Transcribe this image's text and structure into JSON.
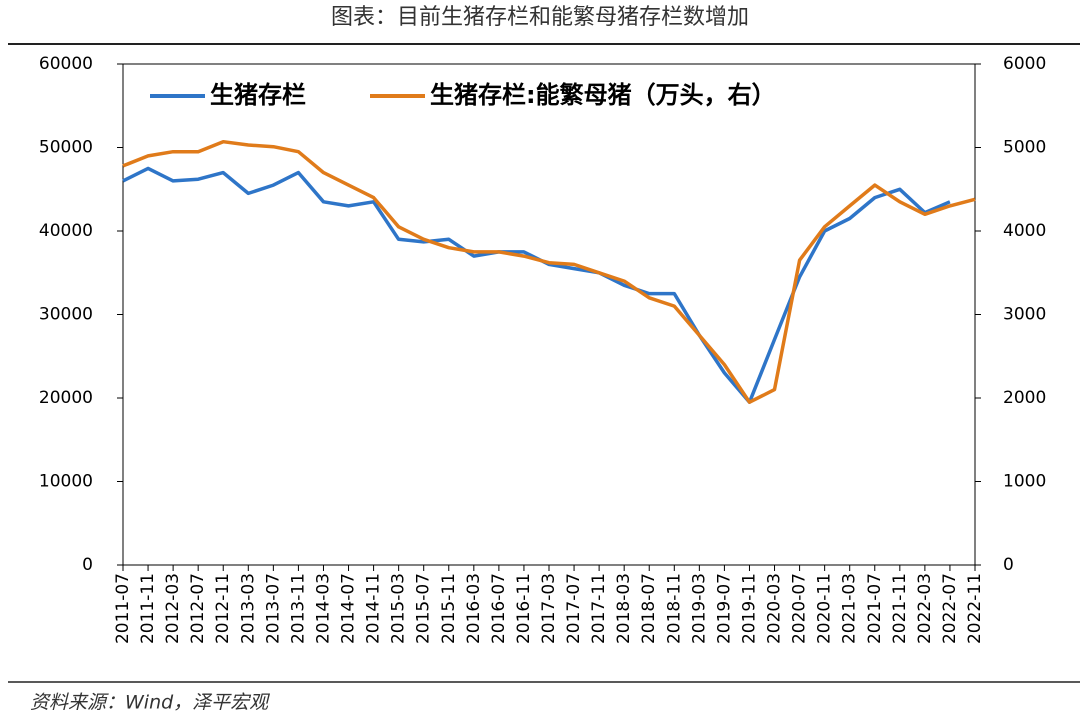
{
  "title": "图表：目前生猪存栏和能繁母猪存栏数增加",
  "source": "资料来源：Wind，泽平宏观",
  "chart_data": {
    "type": "line",
    "categories": [
      "2011-07",
      "2011-11",
      "2012-03",
      "2012-07",
      "2012-11",
      "2013-03",
      "2013-07",
      "2013-11",
      "2014-03",
      "2014-07",
      "2014-11",
      "2015-03",
      "2015-07",
      "2015-11",
      "2016-03",
      "2016-07",
      "2016-11",
      "2017-03",
      "2017-07",
      "2017-11",
      "2018-03",
      "2018-07",
      "2018-11",
      "2019-03",
      "2019-07",
      "2019-11",
      "2020-03",
      "2020-07",
      "2020-11",
      "2021-03",
      "2021-07",
      "2021-11",
      "2022-03",
      "2022-07",
      "2022-11"
    ],
    "series": [
      {
        "name": "生猪存栏",
        "color": "#2e75c8",
        "values": [
          46000,
          47500,
          46000,
          46200,
          47000,
          44500,
          45500,
          47000,
          43500,
          43000,
          43500,
          39000,
          38700,
          39000,
          37000,
          37500,
          37500,
          36000,
          35500,
          35000,
          33500,
          32500,
          32500,
          27500,
          23000,
          19500,
          27000,
          34500,
          40000,
          41500,
          44000,
          45000,
          42200,
          43500,
          null
        ]
      },
      {
        "name": "生猪存栏:能繁母猪（万头，右）",
        "color": "#e07b1a",
        "axis": "y2",
        "values": [
          4780,
          4900,
          4950,
          4950,
          5070,
          5030,
          5010,
          4950,
          4700,
          4550,
          4400,
          4050,
          3900,
          3800,
          3750,
          3750,
          3700,
          3620,
          3600,
          3500,
          3400,
          3200,
          3100,
          2750,
          2400,
          1950,
          2100,
          3650,
          4050,
          4300,
          4550,
          4350,
          4200,
          4300,
          4380
        ]
      }
    ],
    "ylim": [
      0,
      60000
    ],
    "yticks": [
      0,
      10000,
      20000,
      30000,
      40000,
      50000,
      60000
    ],
    "y2lim": [
      0,
      6000
    ],
    "y2ticks": [
      0,
      1000,
      2000,
      3000,
      4000,
      5000,
      6000
    ],
    "legend": "top-left"
  }
}
